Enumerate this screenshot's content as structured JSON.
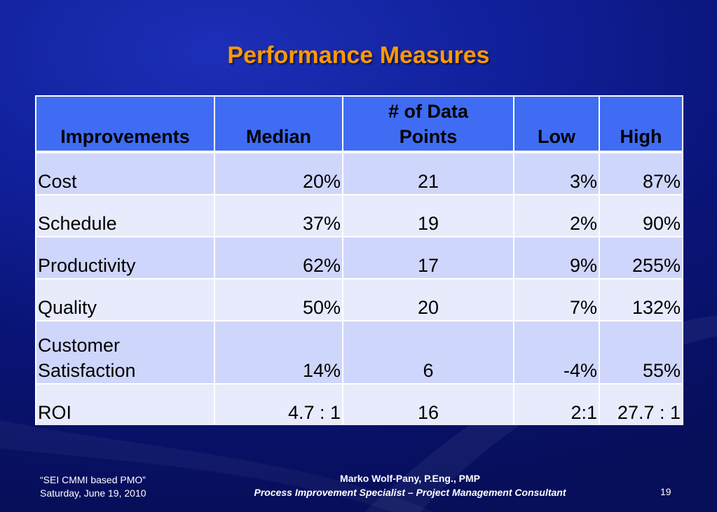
{
  "slide": {
    "title": "Performance Measures",
    "table": {
      "headers": [
        "Improvements",
        "Median",
        "# of Data Points",
        "Low",
        "High"
      ],
      "rows": [
        [
          "Cost",
          "20%",
          "21",
          "3%",
          "87%"
        ],
        [
          "Schedule",
          "37%",
          "19",
          "2%",
          "90%"
        ],
        [
          "Productivity",
          "62%",
          "17",
          "9%",
          "255%"
        ],
        [
          "Quality",
          "50%",
          "20",
          "7%",
          "132%"
        ],
        [
          "Customer Satisfaction",
          "14%",
          "6",
          "-4%",
          "55%"
        ],
        [
          "ROI",
          "4.7 : 1",
          "16",
          "2:1",
          "27.7 : 1"
        ]
      ]
    },
    "footer": {
      "left_line1": "“SEI CMMI based PMO”",
      "left_line2": "Saturday, June 19, 2010",
      "author": "Marko Wolf-Pany, P.Eng., PMP",
      "author_title": "Process Improvement Specialist – Project Management Consultant",
      "page_number": "19"
    },
    "colors": {
      "title": "#ff9900",
      "header_bg": "#3f6cf3",
      "row_odd_bg": "#cfd6fb",
      "row_even_bg": "#e8ebfc",
      "background": "#10209a"
    }
  }
}
